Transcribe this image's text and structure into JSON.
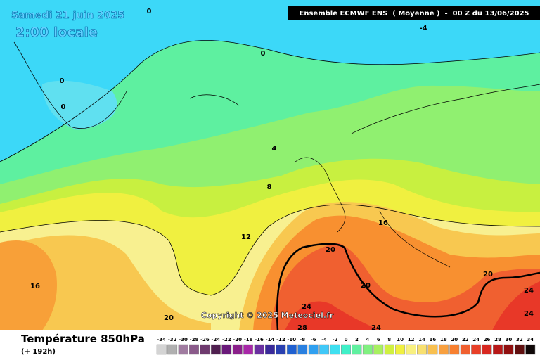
{
  "header": {
    "date": "Samedi 21 juin 2025",
    "time": "2:00 locale",
    "run": "Ensemble ECMWF ENS  ( Moyenne )  -  00 Z du 13/06/2025"
  },
  "contour_labels": [
    "0",
    "-4",
    "0",
    "0",
    "0",
    "4",
    "8",
    "12",
    "16",
    "16",
    "20",
    "20",
    "20",
    "20",
    "24",
    "24",
    "24",
    "24",
    "28"
  ],
  "copyright": "Copyright © 2025 Meteociel.fr",
  "footer": {
    "title": "Température 850hPa",
    "lead": "(+ 192h)"
  },
  "legend": {
    "ticks": [
      -34,
      -32,
      -30,
      -28,
      -26,
      -24,
      -22,
      -20,
      -18,
      -16,
      -14,
      -12,
      -10,
      -8,
      -6,
      -4,
      -2,
      0,
      2,
      4,
      6,
      8,
      10,
      12,
      14,
      16,
      18,
      20,
      22,
      24,
      26,
      28,
      30,
      32,
      34
    ],
    "colors": [
      "#d4d4d4",
      "#b0b0b0",
      "#a07ca0",
      "#8a5a8a",
      "#6e3a6e",
      "#502050",
      "#6a1a7a",
      "#8a208a",
      "#a828a8",
      "#6a30a0",
      "#3a2a9a",
      "#2a40b0",
      "#2060d0",
      "#2a80e0",
      "#30a0f0",
      "#40c8f8",
      "#40e0f0",
      "#40f0c8",
      "#60f0a0",
      "#80f080",
      "#a8f060",
      "#d0f040",
      "#f0f040",
      "#f8f080",
      "#f8e070",
      "#f8c050",
      "#f8a040",
      "#f88030",
      "#f06030",
      "#e84028",
      "#d82820",
      "#b81818",
      "#901010",
      "#601010",
      "#100808"
    ]
  }
}
